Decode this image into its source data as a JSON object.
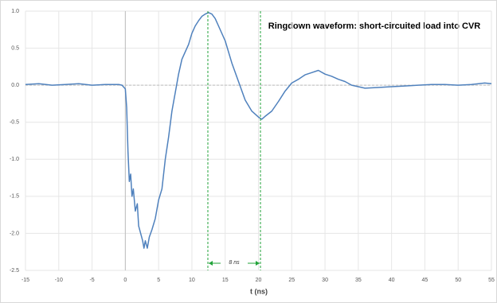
{
  "chart_data": {
    "type": "line",
    "title": "Ringdown waveform: short-circuited load into CVR",
    "x_label": "t (ns)",
    "annotation": "8 ns",
    "vlines": [
      12.4,
      20.3
    ],
    "vline_color": "#22a33a",
    "grid": true,
    "xlim": [
      -15,
      55
    ],
    "ylim": [
      -2.5,
      1.0
    ],
    "xticks": [
      -15,
      -10,
      -5,
      0,
      5,
      10,
      15,
      20,
      25,
      30,
      35,
      40,
      45,
      50,
      55
    ],
    "yticks": [
      {
        "value": -2.5,
        "label": "-2.5"
      },
      {
        "value": -2,
        "label": "-2.0"
      },
      {
        "value": -1.5,
        "label": "-1.5"
      },
      {
        "value": -1,
        "label": "-1.0"
      },
      {
        "value": -0.5,
        "label": "-0.5"
      },
      {
        "value": 0,
        "label": "0.0"
      },
      {
        "value": 0.5,
        "label": "0.5"
      },
      {
        "value": 1,
        "label": "1.0"
      }
    ],
    "x": [
      -15,
      -13,
      -11,
      -9,
      -7,
      -5,
      -3,
      -1,
      -0.5,
      0,
      0.2,
      0.4,
      0.6,
      0.8,
      1,
      1.2,
      1.5,
      1.8,
      2,
      2.3,
      2.6,
      2.8,
      3,
      3.3,
      3.6,
      4,
      4.5,
      5,
      5.5,
      6,
      6.5,
      7,
      7.5,
      8,
      8.5,
      9,
      9.5,
      10,
      10.5,
      11,
      11.5,
      12,
      12.5,
      13,
      13.5,
      14,
      15,
      16,
      17,
      18,
      19,
      20,
      20.5,
      21,
      22,
      23,
      24,
      25,
      26,
      27,
      28,
      29,
      30,
      31,
      32,
      33,
      34,
      35,
      36,
      38,
      40,
      42,
      44,
      46,
      48,
      50,
      52,
      54,
      55
    ],
    "series": [
      {
        "color": "#4f81bd",
        "values": [
          0.01,
          0.02,
          0.0,
          0.01,
          0.02,
          0.0,
          0.01,
          0.01,
          0.0,
          -0.05,
          -0.3,
          -0.9,
          -1.3,
          -1.2,
          -1.5,
          -1.4,
          -1.7,
          -1.6,
          -1.9,
          -2.0,
          -2.1,
          -2.2,
          -2.1,
          -2.2,
          -2.05,
          -1.95,
          -1.8,
          -1.55,
          -1.4,
          -1.0,
          -0.7,
          -0.35,
          -0.1,
          0.15,
          0.35,
          0.45,
          0.55,
          0.7,
          0.8,
          0.87,
          0.93,
          0.96,
          0.98,
          0.96,
          0.9,
          0.8,
          0.6,
          0.3,
          0.05,
          -0.2,
          -0.35,
          -0.43,
          -0.46,
          -0.42,
          -0.35,
          -0.22,
          -0.08,
          0.03,
          0.08,
          0.14,
          0.17,
          0.2,
          0.15,
          0.12,
          0.08,
          0.05,
          0.0,
          -0.02,
          -0.04,
          -0.03,
          -0.02,
          -0.01,
          0.0,
          0.01,
          0.01,
          0.0,
          0.01,
          0.03,
          0.02
        ]
      }
    ]
  }
}
